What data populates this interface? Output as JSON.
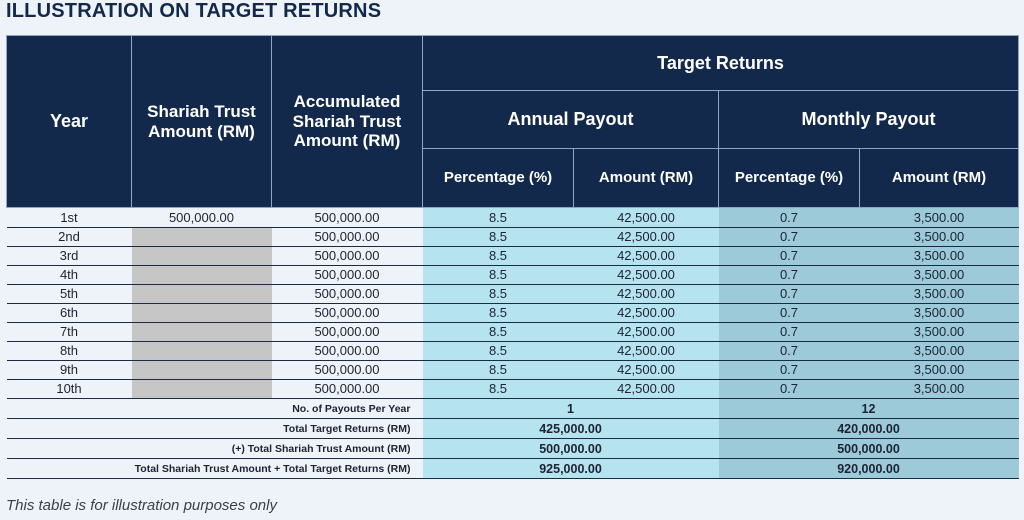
{
  "title": "ILLUSTRATION ON TARGET RETURNS",
  "headers": {
    "year": "Year",
    "trust": "Shariah Trust Amount (RM)",
    "accumulated": "Accumulated Shariah Trust Amount (RM)",
    "target_returns": "Target Returns",
    "annual_payout": "Annual Payout",
    "monthly_payout": "Monthly Payout",
    "percentage": "Percentage (%)",
    "amount": "Amount (RM)"
  },
  "rows": [
    {
      "year": "1st",
      "trust": "500,000.00",
      "accumulated": "500,000.00",
      "ann_pct": "8.5",
      "ann_amt": "42,500.00",
      "mon_pct": "0.7",
      "mon_amt": "3,500.00"
    },
    {
      "year": "2nd",
      "trust": "",
      "accumulated": "500,000.00",
      "ann_pct": "8.5",
      "ann_amt": "42,500.00",
      "mon_pct": "0.7",
      "mon_amt": "3,500.00"
    },
    {
      "year": "3rd",
      "trust": "",
      "accumulated": "500,000.00",
      "ann_pct": "8.5",
      "ann_amt": "42,500.00",
      "mon_pct": "0.7",
      "mon_amt": "3,500.00"
    },
    {
      "year": "4th",
      "trust": "",
      "accumulated": "500,000.00",
      "ann_pct": "8.5",
      "ann_amt": "42,500.00",
      "mon_pct": "0.7",
      "mon_amt": "3,500.00"
    },
    {
      "year": "5th",
      "trust": "",
      "accumulated": "500,000.00",
      "ann_pct": "8.5",
      "ann_amt": "42,500.00",
      "mon_pct": "0.7",
      "mon_amt": "3,500.00"
    },
    {
      "year": "6th",
      "trust": "",
      "accumulated": "500,000.00",
      "ann_pct": "8.5",
      "ann_amt": "42,500.00",
      "mon_pct": "0.7",
      "mon_amt": "3,500.00"
    },
    {
      "year": "7th",
      "trust": "",
      "accumulated": "500,000.00",
      "ann_pct": "8.5",
      "ann_amt": "42,500.00",
      "mon_pct": "0.7",
      "mon_amt": "3,500.00"
    },
    {
      "year": "8th",
      "trust": "",
      "accumulated": "500,000.00",
      "ann_pct": "8.5",
      "ann_amt": "42,500.00",
      "mon_pct": "0.7",
      "mon_amt": "3,500.00"
    },
    {
      "year": "9th",
      "trust": "",
      "accumulated": "500,000.00",
      "ann_pct": "8.5",
      "ann_amt": "42,500.00",
      "mon_pct": "0.7",
      "mon_amt": "3,500.00"
    },
    {
      "year": "10th",
      "trust": "",
      "accumulated": "500,000.00",
      "ann_pct": "8.5",
      "ann_amt": "42,500.00",
      "mon_pct": "0.7",
      "mon_amt": "3,500.00"
    }
  ],
  "summary": [
    {
      "label": "No. of Payouts Per Year",
      "annual": "1",
      "monthly": "12"
    },
    {
      "label": "Total Target Returns (RM)",
      "annual": "425,000.00",
      "monthly": "420,000.00"
    },
    {
      "label": "(+) Total Shariah Trust Amount (RM)",
      "annual": "500,000.00",
      "monthly": "500,000.00"
    },
    {
      "label": "Total Shariah Trust Amount + Total Target Returns (RM)",
      "annual": "925,000.00",
      "monthly": "920,000.00"
    }
  ],
  "footnote": "This table is for illustration purposes only",
  "colors": {
    "header_bg": "#13294b",
    "annual_col_bg": "#b5e3f0",
    "monthly_col_bg": "#9ccad8",
    "blank_cell_bg": "#c6c6c6",
    "page_bg": "#eef2f9"
  }
}
